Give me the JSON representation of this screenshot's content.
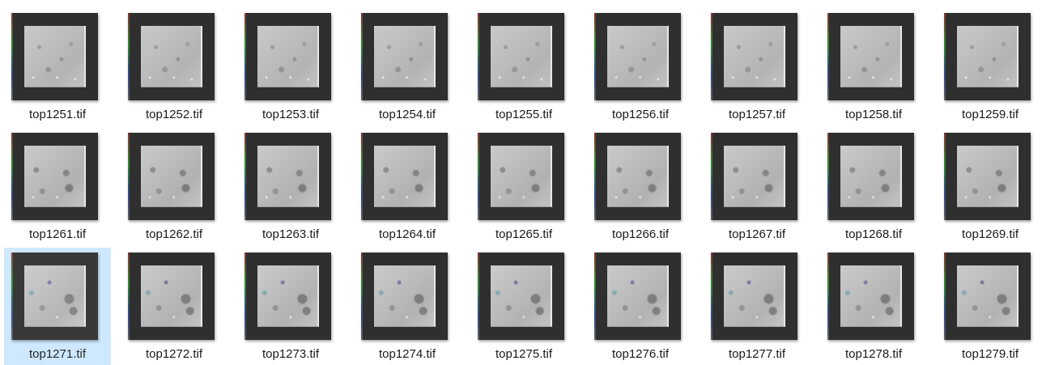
{
  "files": [
    {
      "name": "top1251.tif",
      "selected": false
    },
    {
      "name": "top1252.tif",
      "selected": false
    },
    {
      "name": "top1253.tif",
      "selected": false
    },
    {
      "name": "top1254.tif",
      "selected": false
    },
    {
      "name": "top1255.tif",
      "selected": false
    },
    {
      "name": "top1256.tif",
      "selected": false
    },
    {
      "name": "top1257.tif",
      "selected": false
    },
    {
      "name": "top1258.tif",
      "selected": false
    },
    {
      "name": "top1259.tif",
      "selected": false
    },
    {
      "name": "top1261.tif",
      "selected": false
    },
    {
      "name": "top1262.tif",
      "selected": false
    },
    {
      "name": "top1263.tif",
      "selected": false
    },
    {
      "name": "top1264.tif",
      "selected": false
    },
    {
      "name": "top1265.tif",
      "selected": false
    },
    {
      "name": "top1266.tif",
      "selected": false
    },
    {
      "name": "top1267.tif",
      "selected": false
    },
    {
      "name": "top1268.tif",
      "selected": false
    },
    {
      "name": "top1269.tif",
      "selected": false
    },
    {
      "name": "top1271.tif",
      "selected": true
    },
    {
      "name": "top1272.tif",
      "selected": false
    },
    {
      "name": "top1273.tif",
      "selected": false
    },
    {
      "name": "top1274.tif",
      "selected": false
    },
    {
      "name": "top1275.tif",
      "selected": false
    },
    {
      "name": "top1276.tif",
      "selected": false
    },
    {
      "name": "top1277.tif",
      "selected": false
    },
    {
      "name": "top1278.tif",
      "selected": false
    },
    {
      "name": "top1279.tif",
      "selected": false
    }
  ],
  "colors": {
    "selection": "#cce8ff",
    "frame": "#2f2f2f",
    "label_text": "#1a1a1a"
  },
  "icons": {
    "thumbnail": "image-thumbnail-icon"
  }
}
